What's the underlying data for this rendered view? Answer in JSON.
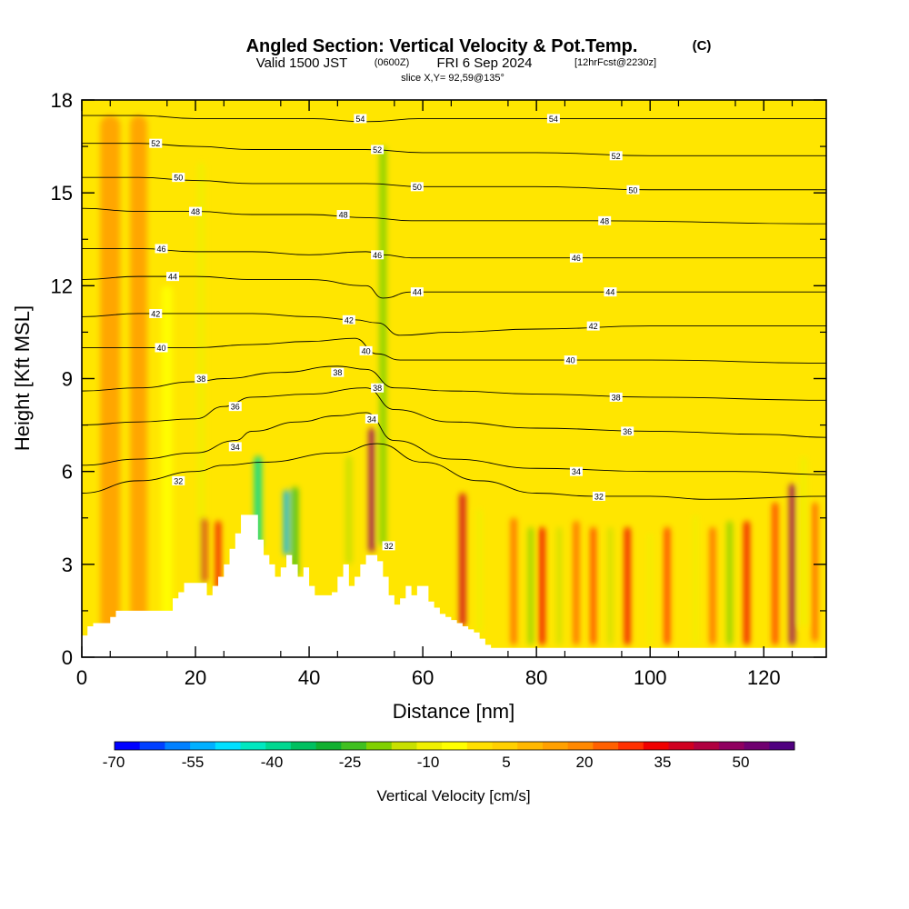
{
  "header": {
    "title": "Angled Section: Vertical Velocity & Pot.Temp.",
    "title_mark": "(C)",
    "valid_prefix": "Valid 1500 JST",
    "valid_utc": "(0600Z)",
    "valid_date": "FRI 6 Sep 2024",
    "forecast_info": "[12hrFcst@2230z]",
    "slice_info": "slice X,Y= 92,59@135°"
  },
  "chart_data": {
    "type": "heatmap",
    "title": "Angled Section: Vertical Velocity & Pot.Temp.",
    "xlabel": "Distance [nm]",
    "ylabel": "Height [Kft MSL]",
    "xlim": [
      0,
      131
    ],
    "ylim": [
      0,
      18
    ],
    "x_ticks": [
      "0",
      "20",
      "40",
      "60",
      "80",
      "100",
      "120"
    ],
    "y_ticks": [
      "0",
      "3",
      "6",
      "9",
      "12",
      "15",
      "18"
    ],
    "colorbar": {
      "label": "Vertical Velocity [cm/s]",
      "tick_labels": [
        "-70",
        "-55",
        "-40",
        "-25",
        "-10",
        "5",
        "20",
        "35",
        "50"
      ],
      "colors": [
        "#0000ff",
        "#0040ff",
        "#0080ff",
        "#00b0ff",
        "#00e0ff",
        "#00e8c0",
        "#00d890",
        "#00c060",
        "#10b030",
        "#40c020",
        "#80d000",
        "#c8e000",
        "#f0f000",
        "#ffff00",
        "#ffe000",
        "#ffd000",
        "#ffb800",
        "#ffa000",
        "#ff8800",
        "#ff6000",
        "#ff3000",
        "#f00000",
        "#d00020",
        "#b00040",
        "#900060",
        "#700070",
        "#500080"
      ]
    },
    "terrain": {
      "x": [
        0,
        1,
        2,
        5,
        6,
        10,
        13,
        16,
        17,
        18,
        21,
        22,
        23,
        24,
        25,
        26,
        27,
        28,
        29,
        30,
        31,
        32,
        33,
        34,
        35,
        36,
        37,
        38,
        39,
        40,
        41,
        42,
        43,
        44,
        45,
        46,
        47,
        48,
        49,
        50,
        51,
        52,
        53,
        54,
        55,
        56,
        57,
        58,
        59,
        60,
        61,
        62,
        63,
        64,
        65,
        66,
        67,
        68,
        69,
        70,
        71,
        72,
        73,
        131
      ],
      "height_kft": [
        0.7,
        1.0,
        1.1,
        1.3,
        1.5,
        1.5,
        1.5,
        1.9,
        2.1,
        2.4,
        2.4,
        2.0,
        2.3,
        2.6,
        3.0,
        3.5,
        4.0,
        4.6,
        4.6,
        4.6,
        3.8,
        3.3,
        3.0,
        2.6,
        2.9,
        3.3,
        3.0,
        2.6,
        2.9,
        2.3,
        2.0,
        2.0,
        2.0,
        2.1,
        2.6,
        3.0,
        2.3,
        2.6,
        3.0,
        3.3,
        3.3,
        3.1,
        2.6,
        2.0,
        1.7,
        1.9,
        2.3,
        2.0,
        2.3,
        2.3,
        1.8,
        1.6,
        1.4,
        1.3,
        1.2,
        1.1,
        1.0,
        0.9,
        0.8,
        0.6,
        0.4,
        0.3,
        0.3,
        0.3
      ]
    },
    "velocity_features": [
      {
        "x": 5,
        "y_bottom": 0.5,
        "y_top": 17.5,
        "width": 3.5,
        "value": 12
      },
      {
        "x": 10,
        "y_bottom": 0.5,
        "y_top": 17.5,
        "width": 3,
        "value": 15
      },
      {
        "x": 15,
        "y_bottom": 1.2,
        "y_top": 12,
        "width": 2,
        "value": -8
      },
      {
        "x": 21,
        "y_bottom": 2,
        "y_top": 16,
        "width": 1.2,
        "value": -15
      },
      {
        "x": 21.5,
        "y_bottom": 2.4,
        "y_top": 4.5,
        "width": 1.0,
        "value": 38
      },
      {
        "x": 24,
        "y_bottom": 2.2,
        "y_top": 4.4,
        "width": 0.9,
        "value": 32
      },
      {
        "x": 31,
        "y_bottom": 3.5,
        "y_top": 6.5,
        "width": 1.3,
        "value": -45
      },
      {
        "x": 36,
        "y_bottom": 3.3,
        "y_top": 5.4,
        "width": 1.0,
        "value": -60
      },
      {
        "x": 37.5,
        "y_bottom": 2.6,
        "y_top": 5.5,
        "width": 1.2,
        "value": -30
      },
      {
        "x": 47,
        "y_bottom": 3,
        "y_top": 6.5,
        "width": 1.2,
        "value": -20
      },
      {
        "x": 51,
        "y_bottom": 3.4,
        "y_top": 7.4,
        "width": 1.0,
        "value": 50
      },
      {
        "x": 53,
        "y_bottom": 3.6,
        "y_top": 16.5,
        "width": 1.2,
        "value": -22
      },
      {
        "x": 67,
        "y_bottom": 1,
        "y_top": 5.3,
        "width": 1.1,
        "value": 40
      },
      {
        "x": 70,
        "y_bottom": 0.8,
        "y_top": 4.8,
        "width": 1.0,
        "value": -15
      },
      {
        "x": 76,
        "y_bottom": 0.4,
        "y_top": 4.5,
        "width": 1.0,
        "value": 22
      },
      {
        "x": 79,
        "y_bottom": 0.4,
        "y_top": 4.2,
        "width": 0.8,
        "value": -25
      },
      {
        "x": 81,
        "y_bottom": 0.4,
        "y_top": 4.2,
        "width": 1.0,
        "value": 35
      },
      {
        "x": 84,
        "y_bottom": 0.4,
        "y_top": 4.2,
        "width": 0.8,
        "value": -20
      },
      {
        "x": 87,
        "y_bottom": 0.4,
        "y_top": 4.4,
        "width": 1.0,
        "value": 25
      },
      {
        "x": 90,
        "y_bottom": 0.4,
        "y_top": 4.2,
        "width": 0.9,
        "value": 30
      },
      {
        "x": 93,
        "y_bottom": 0.4,
        "y_top": 4.2,
        "width": 0.8,
        "value": -18
      },
      {
        "x": 96,
        "y_bottom": 0.4,
        "y_top": 4.2,
        "width": 1.0,
        "value": 32
      },
      {
        "x": 100,
        "y_bottom": 0.4,
        "y_top": 4.0,
        "width": 0.8,
        "value": -15
      },
      {
        "x": 103,
        "y_bottom": 0.4,
        "y_top": 4.2,
        "width": 1.0,
        "value": 28
      },
      {
        "x": 108,
        "y_bottom": 0.4,
        "y_top": 4.6,
        "width": 0.9,
        "value": -12
      },
      {
        "x": 111,
        "y_bottom": 0.4,
        "y_top": 4.2,
        "width": 1.0,
        "value": 25
      },
      {
        "x": 114,
        "y_bottom": 0.4,
        "y_top": 4.4,
        "width": 0.9,
        "value": -25
      },
      {
        "x": 117,
        "y_bottom": 0.4,
        "y_top": 4.4,
        "width": 1.0,
        "value": 35
      },
      {
        "x": 122,
        "y_bottom": 0.4,
        "y_top": 5.0,
        "width": 1.0,
        "value": 30
      },
      {
        "x": 125,
        "y_bottom": 0.4,
        "y_top": 5.6,
        "width": 1.0,
        "value": 50
      },
      {
        "x": 127,
        "y_bottom": 1.0,
        "y_top": 6.5,
        "width": 1.2,
        "value": -12
      },
      {
        "x": 129,
        "y_bottom": 0.5,
        "y_top": 5.0,
        "width": 1.0,
        "value": 25
      }
    ],
    "contours": [
      {
        "value": 32,
        "x": [
          0,
          10,
          20,
          25,
          32,
          45,
          52,
          60,
          70,
          80,
          90,
          100,
          110,
          131
        ],
        "y": [
          5.3,
          5.7,
          6.0,
          6.2,
          6.3,
          6.6,
          6.9,
          6.3,
          5.7,
          5.3,
          5.2,
          5.2,
          5.1,
          5.2
        ]
      },
      {
        "value": 34,
        "x": [
          0,
          10,
          20,
          27,
          30,
          38,
          45,
          50,
          55,
          65,
          80,
          100,
          115,
          131
        ],
        "y": [
          6.2,
          6.4,
          6.6,
          7.0,
          7.3,
          7.6,
          7.8,
          7.9,
          7.0,
          6.4,
          6.1,
          6.0,
          6.0,
          5.9
        ]
      },
      {
        "value": 36,
        "x": [
          0,
          10,
          20,
          25,
          30,
          40,
          50,
          55,
          65,
          80,
          100,
          120,
          131
        ],
        "y": [
          7.5,
          7.6,
          7.7,
          8.1,
          8.4,
          8.5,
          8.7,
          8.0,
          7.6,
          7.4,
          7.3,
          7.2,
          7.1
        ]
      },
      {
        "value": 38,
        "x": [
          0,
          10,
          20,
          25,
          35,
          45,
          50,
          55,
          65,
          80,
          100,
          131
        ],
        "y": [
          8.6,
          8.7,
          8.9,
          9.0,
          9.2,
          9.4,
          9.3,
          8.7,
          8.6,
          8.5,
          8.4,
          8.3
        ]
      },
      {
        "value": 40,
        "x": [
          0,
          10,
          20,
          30,
          40,
          48,
          52,
          56,
          65,
          80,
          100,
          131
        ],
        "y": [
          10.0,
          10.0,
          10.0,
          10.1,
          10.2,
          10.3,
          9.8,
          9.6,
          9.6,
          9.6,
          9.6,
          9.5
        ]
      },
      {
        "value": 42,
        "x": [
          0,
          10,
          20,
          30,
          40,
          48,
          52,
          56,
          65,
          80,
          100,
          131
        ],
        "y": [
          11.0,
          11.1,
          11.1,
          11.1,
          11.0,
          10.9,
          10.8,
          10.4,
          10.5,
          10.6,
          10.7,
          10.7
        ]
      },
      {
        "value": 44,
        "x": [
          0,
          10,
          20,
          30,
          40,
          50,
          53,
          58,
          70,
          90,
          131
        ],
        "y": [
          12.2,
          12.3,
          12.3,
          12.2,
          12.2,
          12.0,
          11.6,
          11.8,
          11.8,
          11.8,
          11.8
        ]
      },
      {
        "value": 46,
        "x": [
          0,
          10,
          20,
          30,
          40,
          50,
          53,
          58,
          70,
          90,
          131
        ],
        "y": [
          13.2,
          13.2,
          13.1,
          13.1,
          13.0,
          13.1,
          13.0,
          12.9,
          12.9,
          12.9,
          12.9
        ]
      },
      {
        "value": 48,
        "x": [
          0,
          10,
          20,
          30,
          40,
          50,
          58,
          70,
          90,
          131
        ],
        "y": [
          14.5,
          14.4,
          14.4,
          14.3,
          14.3,
          14.2,
          14.1,
          14.1,
          14.1,
          14.0
        ]
      },
      {
        "value": 50,
        "x": [
          0,
          10,
          20,
          30,
          40,
          50,
          60,
          80,
          100,
          131
        ],
        "y": [
          15.5,
          15.5,
          15.4,
          15.3,
          15.3,
          15.3,
          15.2,
          15.2,
          15.1,
          15.1
        ]
      },
      {
        "value": 52,
        "x": [
          0,
          10,
          20,
          30,
          40,
          50,
          60,
          80,
          100,
          131
        ],
        "y": [
          16.6,
          16.6,
          16.5,
          16.4,
          16.4,
          16.4,
          16.3,
          16.3,
          16.2,
          16.2
        ]
      },
      {
        "value": 54,
        "x": [
          0,
          10,
          20,
          30,
          40,
          50,
          60,
          80,
          100,
          131
        ],
        "y": [
          17.5,
          17.5,
          17.4,
          17.4,
          17.4,
          17.3,
          17.4,
          17.4,
          17.4,
          17.4
        ]
      }
    ],
    "contour_labels": [
      {
        "text": "54",
        "x": 49,
        "y": 17.4
      },
      {
        "text": "54",
        "x": 83,
        "y": 17.4
      },
      {
        "text": "52",
        "x": 13,
        "y": 16.6
      },
      {
        "text": "52",
        "x": 52,
        "y": 16.4
      },
      {
        "text": "52",
        "x": 94,
        "y": 16.2
      },
      {
        "text": "50",
        "x": 17,
        "y": 15.5
      },
      {
        "text": "50",
        "x": 59,
        "y": 15.2
      },
      {
        "text": "50",
        "x": 97,
        "y": 15.1
      },
      {
        "text": "48",
        "x": 20,
        "y": 14.4
      },
      {
        "text": "48",
        "x": 46,
        "y": 14.3
      },
      {
        "text": "48",
        "x": 92,
        "y": 14.1
      },
      {
        "text": "46",
        "x": 14,
        "y": 13.2
      },
      {
        "text": "46",
        "x": 52,
        "y": 13.0
      },
      {
        "text": "46",
        "x": 87,
        "y": 12.9
      },
      {
        "text": "44",
        "x": 16,
        "y": 12.3
      },
      {
        "text": "44",
        "x": 59,
        "y": 11.8
      },
      {
        "text": "44",
        "x": 93,
        "y": 11.8
      },
      {
        "text": "42",
        "x": 13,
        "y": 11.1
      },
      {
        "text": "42",
        "x": 47,
        "y": 10.9
      },
      {
        "text": "42",
        "x": 90,
        "y": 10.7
      },
      {
        "text": "40",
        "x": 14,
        "y": 10.0
      },
      {
        "text": "40",
        "x": 50,
        "y": 9.9
      },
      {
        "text": "40",
        "x": 86,
        "y": 9.6
      },
      {
        "text": "38",
        "x": 21,
        "y": 9.0
      },
      {
        "text": "38",
        "x": 45,
        "y": 9.2
      },
      {
        "text": "38",
        "x": 52,
        "y": 8.7
      },
      {
        "text": "38",
        "x": 94,
        "y": 8.4
      },
      {
        "text": "36",
        "x": 27,
        "y": 8.1
      },
      {
        "text": "36",
        "x": 96,
        "y": 7.3
      },
      {
        "text": "34",
        "x": 27,
        "y": 6.8
      },
      {
        "text": "34",
        "x": 51,
        "y": 7.7
      },
      {
        "text": "34",
        "x": 87,
        "y": 6.0
      },
      {
        "text": "32",
        "x": 17,
        "y": 5.7
      },
      {
        "text": "32",
        "x": 54,
        "y": 3.6
      },
      {
        "text": "32",
        "x": 91,
        "y": 5.2
      }
    ]
  }
}
